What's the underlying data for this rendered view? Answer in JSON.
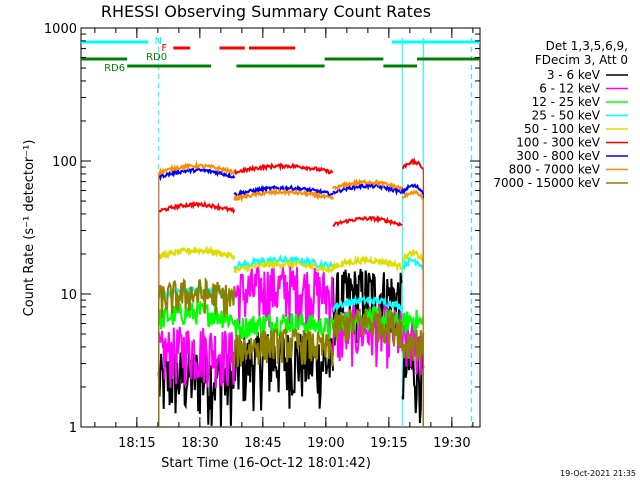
{
  "chart_data": {
    "type": "line",
    "title": "RHESSI Observing Summary Count Rates",
    "xlabel": "Start Time (16-Oct-12 18:01:42)",
    "ylabel": "Count Rate (s⁻¹ detector⁻¹)",
    "yscale": "log",
    "ylim": [
      1,
      1000
    ],
    "x_tick_labels": [
      "18:15",
      "18:30",
      "18:45",
      "19:00",
      "19:15",
      "19:30"
    ],
    "y_tick_labels": [
      "1",
      "10",
      "100",
      "1000"
    ],
    "legend_header": [
      "Det 1,3,5,6,9,",
      "FDecim 3, Att 0"
    ],
    "segments_minutes": [
      [
        18.5,
        36.5
      ],
      [
        36.5,
        60.0
      ],
      [
        60.0,
        76.5
      ],
      [
        76.5,
        81.5
      ]
    ],
    "series": [
      {
        "name": "3 - 6 keV",
        "color": "#000000",
        "segment_levels": [
          2.2,
          3.0,
          9.0,
          2.5
        ],
        "noise": 0.6
      },
      {
        "name": "6 - 12 keV",
        "color": "#ff00ff",
        "segment_levels": [
          3.5,
          10.0,
          5.0,
          4.0
        ],
        "noise": 0.5
      },
      {
        "name": "12 - 25 keV",
        "color": "#00ff00",
        "segment_levels": [
          6.5,
          5.5,
          6.0,
          5.8
        ],
        "noise": 0.2
      },
      {
        "name": "25 - 50 keV",
        "color": "#00ffff",
        "segment_levels": [
          9.5,
          16.0,
          8.0,
          16.0
        ],
        "noise": 0.06
      },
      {
        "name": "50 - 100 keV",
        "color": "#dddd00",
        "segment_levels": [
          19.0,
          15.0,
          16.0,
          18.0
        ],
        "noise": 0.05
      },
      {
        "name": "100 - 300 keV",
        "color": "#ff0000",
        "segment_levels": [
          42.0,
          82.0,
          33.0,
          88.0
        ],
        "noise": 0.03
      },
      {
        "name": "300 - 800 keV",
        "color": "#0000ff",
        "segment_levels": [
          76.0,
          56.0,
          58.0,
          58.0
        ],
        "noise": 0.03
      },
      {
        "name": "800 - 7000 keV",
        "color": "#ff8c00",
        "segment_levels": [
          82.0,
          52.0,
          62.0,
          52.0
        ],
        "noise": 0.03
      },
      {
        "name": "7000 - 15000 keV",
        "color": "#8b8000",
        "segment_levels": [
          9.0,
          3.8,
          5.5,
          4.0
        ],
        "noise": 0.3
      }
    ],
    "status_bars": [
      {
        "label": "N",
        "color": "#00ffff",
        "row": 0,
        "label_pos": "start",
        "intervals": [
          [
            0,
            16
          ],
          [
            74,
            95
          ]
        ]
      },
      {
        "label": "F",
        "color": "#ff0000",
        "row": 1,
        "label_pos": "start",
        "intervals": [
          [
            22,
            26
          ],
          [
            33,
            39
          ],
          [
            40,
            51
          ]
        ]
      },
      {
        "label": "RD0",
        "color": "#008000",
        "row": 2,
        "label_pos": "mid",
        "intervals": [
          [
            0,
            11
          ],
          [
            58,
            72
          ],
          [
            80,
            95
          ]
        ]
      },
      {
        "label": "RD6",
        "color": "#008000",
        "row": 3,
        "label_pos": "start",
        "intervals": [
          [
            11,
            31
          ],
          [
            37,
            58
          ],
          [
            72,
            80
          ]
        ]
      }
    ],
    "vertical_markers": [
      {
        "minute": 18.5,
        "color": "#00ffff",
        "style": "dashed"
      },
      {
        "minute": 76.5,
        "color": "#00ffff",
        "style": "solid"
      },
      {
        "minute": 81.5,
        "color": "#00ffff",
        "style": "solid"
      },
      {
        "minute": 93.0,
        "color": "#00ffff",
        "style": "dashed"
      }
    ],
    "grid": false,
    "legend_position": "right"
  },
  "footer_stamp": "19-Oct-2021 21:35"
}
